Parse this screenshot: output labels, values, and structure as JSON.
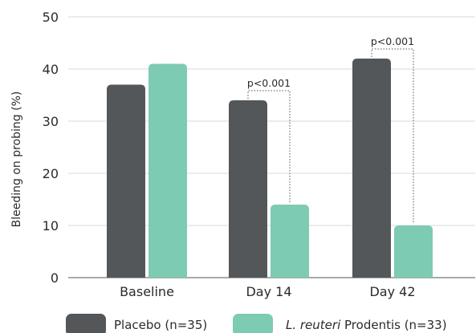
{
  "chart_data": {
    "type": "bar",
    "ylabel": "Bleeding on probing (%)",
    "xlabel": "",
    "ylim": [
      0,
      50
    ],
    "yticks": [
      0,
      10,
      20,
      30,
      40,
      50
    ],
    "grid": "horizontal",
    "legend_position": "bottom",
    "categories": [
      "Baseline",
      "Day 14",
      "Day 42"
    ],
    "series": [
      {
        "name": "Placebo (n=35)",
        "color": "#545759",
        "values": [
          37,
          34,
          42
        ]
      },
      {
        "name_italic": "L. reuteri",
        "name_rest": " Prodentis (n=33)",
        "color": "#7ccbb2",
        "values": [
          41,
          14,
          10
        ]
      }
    ],
    "annotations": [
      {
        "category": "Day 14",
        "text": "p<0.001"
      },
      {
        "category": "Day 42",
        "text": "p<0.001"
      }
    ]
  }
}
